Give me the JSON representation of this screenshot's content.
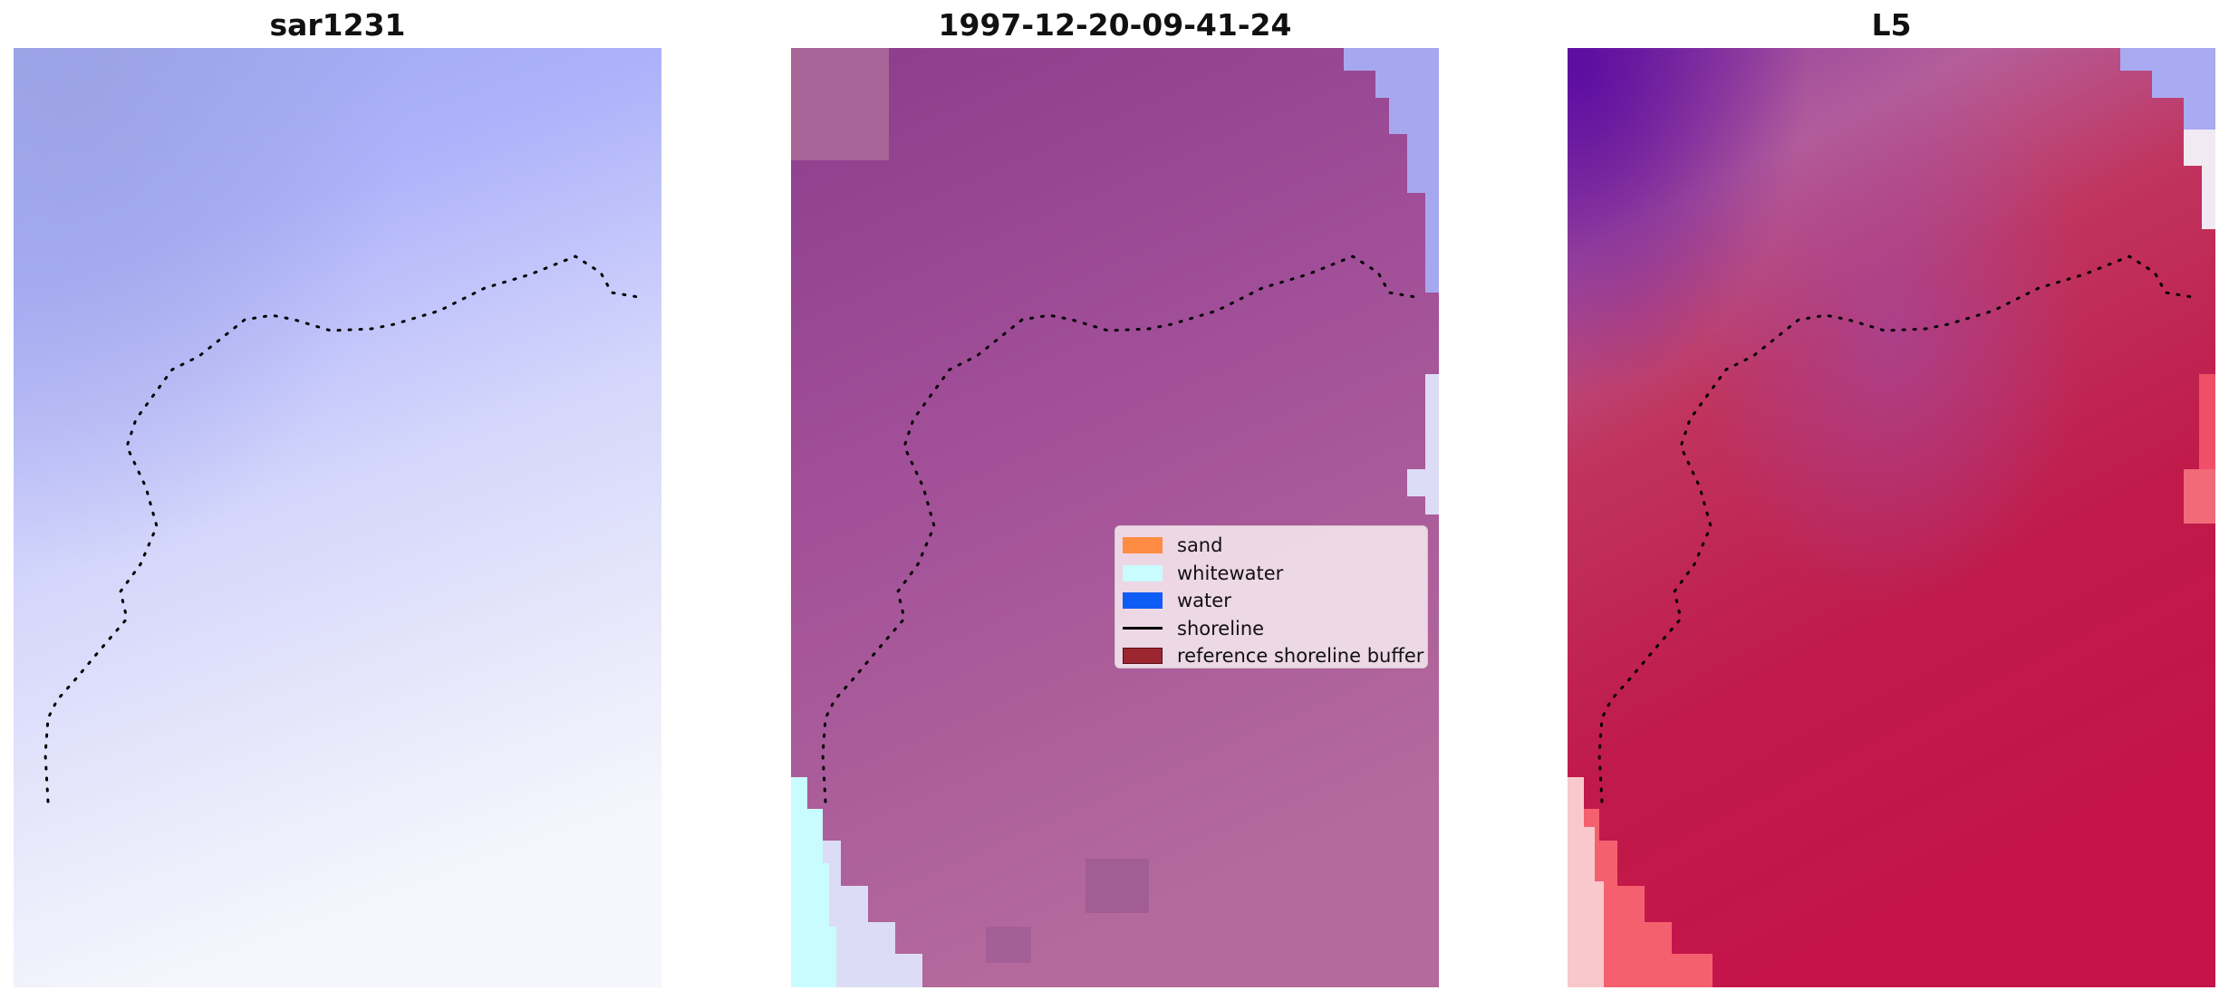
{
  "panels": [
    {
      "title": "sar1231"
    },
    {
      "title": "1997-12-20-09-41-24"
    },
    {
      "title": "L5"
    }
  ],
  "legend": [
    {
      "label": "sand",
      "color": "#ff8c42",
      "kind": "patch"
    },
    {
      "label": "whitewater",
      "color": "#c8fcff",
      "kind": "patch"
    },
    {
      "label": "water",
      "color": "#0f5cf5",
      "kind": "patch"
    },
    {
      "label": "shoreline",
      "color": "#000000",
      "kind": "line"
    },
    {
      "label": "reference shoreline buffer",
      "color": "#9b2630",
      "kind": "patch"
    }
  ]
}
